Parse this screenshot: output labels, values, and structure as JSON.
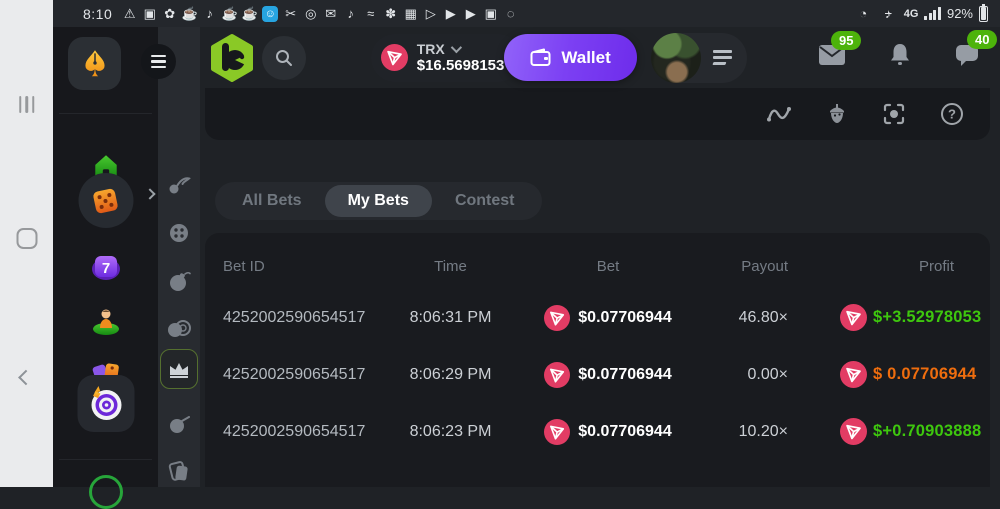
{
  "colors": {
    "green": "#3ec70e",
    "orange": "#ee6d0e",
    "badge_green": "#4db30b",
    "accent_purple": "#7b3ff2",
    "trx_red": "#e23c64",
    "logo_lime": "#8ac926"
  },
  "status_bar": {
    "time": "8:10",
    "network": "4G",
    "battery_percent": "92%",
    "alarm_glyph": "◔",
    "mute_glyph": "♪",
    "left_icons": [
      {
        "name": "warning",
        "glyph": "⚠"
      },
      {
        "name": "shopping-bag",
        "glyph": "▣"
      },
      {
        "name": "settings-flower",
        "glyph": "✿"
      },
      {
        "name": "drink-1",
        "glyph": "☕"
      },
      {
        "name": "bell-1",
        "glyph": "♪"
      },
      {
        "name": "drink-2",
        "glyph": "☕"
      },
      {
        "name": "drink-3",
        "glyph": "☕"
      },
      {
        "name": "chat-app",
        "glyph": "☺",
        "special": "blue-chip"
      },
      {
        "name": "share",
        "glyph": "✂"
      },
      {
        "name": "spotify",
        "glyph": "◎"
      },
      {
        "name": "mms",
        "glyph": "✉"
      },
      {
        "name": "bell-2",
        "glyph": "♪"
      },
      {
        "name": "vario",
        "glyph": "≈"
      },
      {
        "name": "plant",
        "glyph": "✽"
      },
      {
        "name": "gallery",
        "glyph": "▦"
      },
      {
        "name": "play",
        "glyph": "▷"
      },
      {
        "name": "youtube-1",
        "glyph": "▶"
      },
      {
        "name": "youtube-2",
        "glyph": "▶"
      },
      {
        "name": "shopping-bag-2",
        "glyph": "▣"
      },
      {
        "name": "misc",
        "glyph": "◌"
      }
    ]
  },
  "nav": {
    "currency": {
      "code": "TRX",
      "balance": "$16.5698153"
    },
    "wallet_label": "Wallet",
    "badges": {
      "mail": "95",
      "chat": "40"
    }
  },
  "icons": {
    "slot_seven": "7",
    "help_glyph": "?"
  },
  "tabs": [
    {
      "label": "All Bets",
      "active": false
    },
    {
      "label": "My Bets",
      "active": true
    },
    {
      "label": "Contest",
      "active": false
    }
  ],
  "table": {
    "columns": [
      "Bet ID",
      "Time",
      "Bet",
      "Payout",
      "Profit"
    ],
    "rows": [
      {
        "bet_id": "4252002590654517",
        "time": "8:06:31 PM",
        "bet": "$0.07706944",
        "payout": "46.80×",
        "profit": "$+3.52978053",
        "profit_color": "green"
      },
      {
        "bet_id": "4252002590654517",
        "time": "8:06:29 PM",
        "bet": "$0.07706944",
        "payout": "0.00×",
        "profit": "$ 0.07706944",
        "profit_color": "orange"
      },
      {
        "bet_id": "4252002590654517",
        "time": "8:06:23 PM",
        "bet": "$0.07706944",
        "payout": "10.20×",
        "profit": "$+0.70903888",
        "profit_color": "green"
      }
    ]
  }
}
